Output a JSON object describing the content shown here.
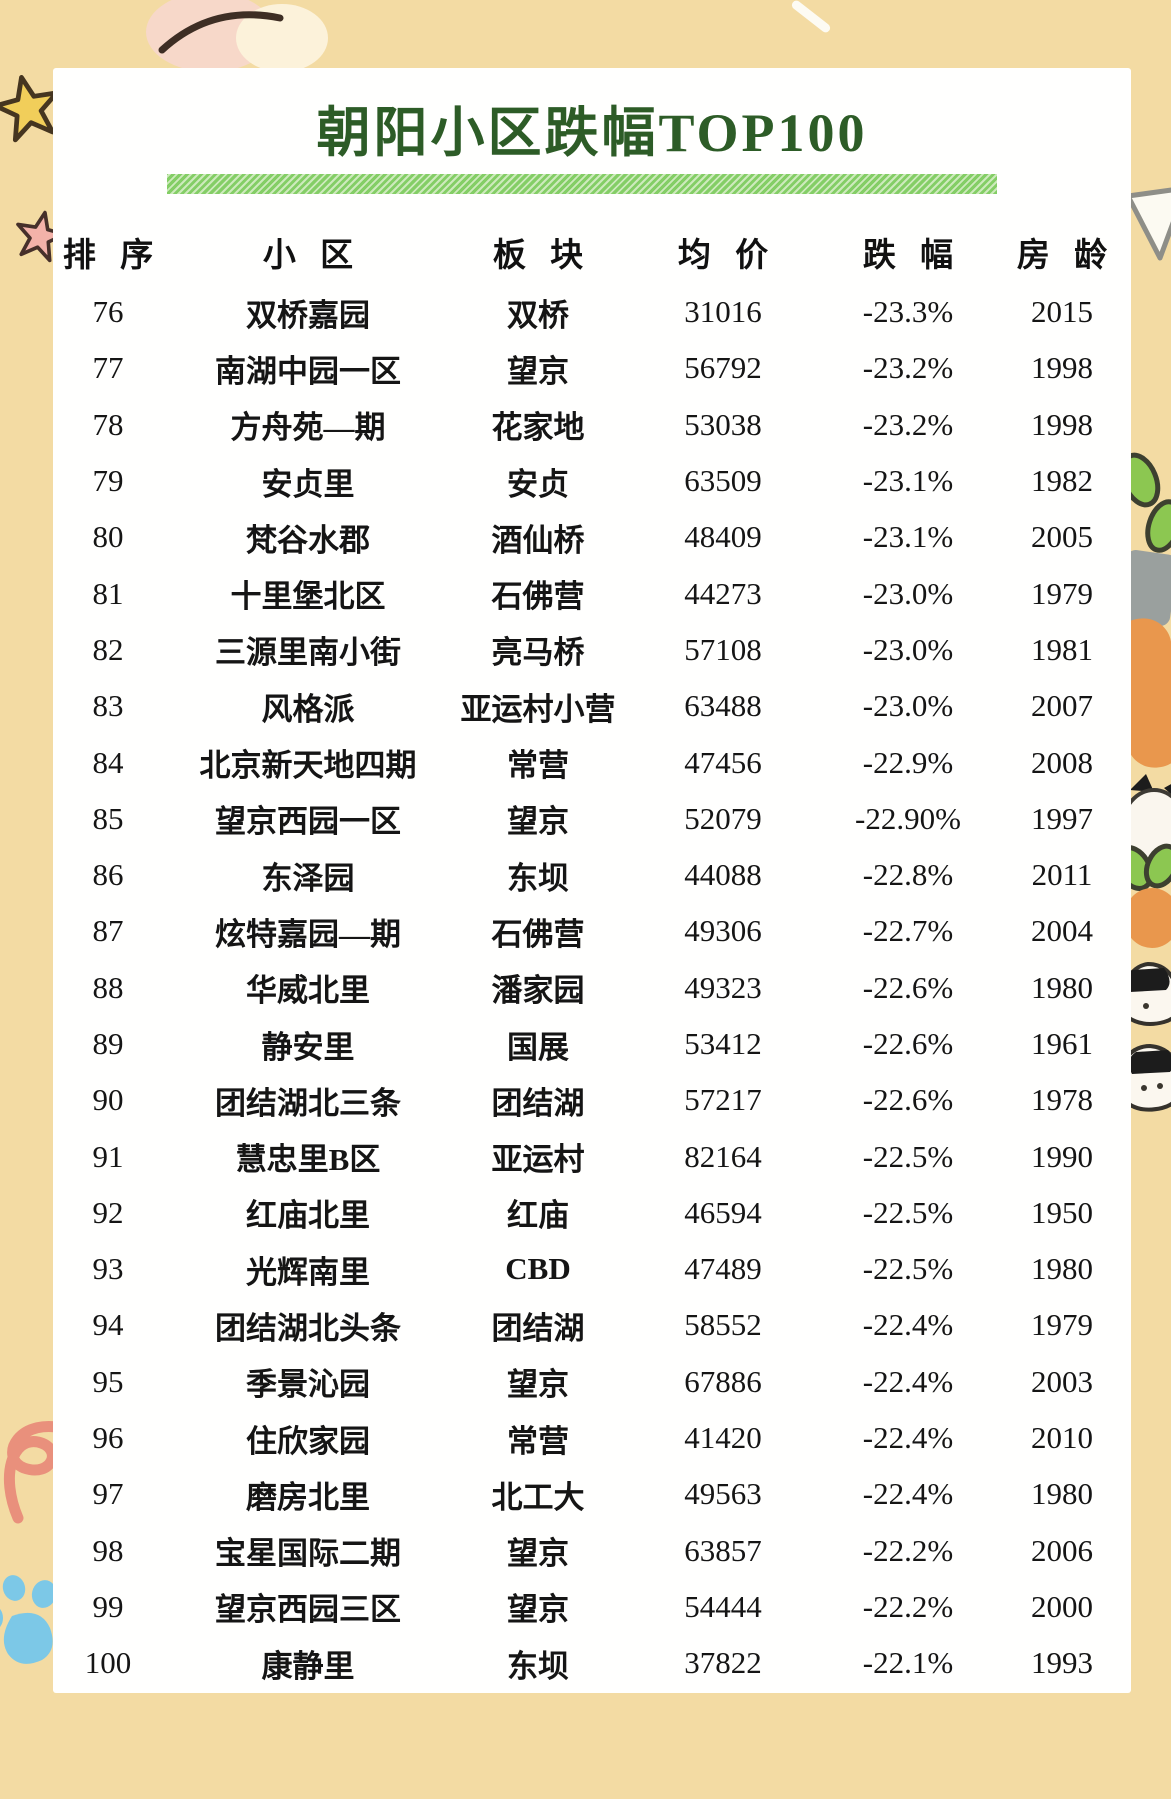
{
  "title": "朝阳小区跌幅TOP100",
  "table": {
    "headers": [
      "排 序",
      "小 区",
      "板 块",
      "均 价",
      "跌 幅",
      "房 龄"
    ],
    "column_names": [
      "排序",
      "小区",
      "板块",
      "均价",
      "跌幅",
      "房龄"
    ],
    "rows": [
      [
        "76",
        "双桥嘉园",
        "双桥",
        "31016",
        "-23.3%",
        "2015"
      ],
      [
        "77",
        "南湖中园一区",
        "望京",
        "56792",
        "-23.2%",
        "1998"
      ],
      [
        "78",
        "方舟苑—期",
        "花家地",
        "53038",
        "-23.2%",
        "1998"
      ],
      [
        "79",
        "安贞里",
        "安贞",
        "63509",
        "-23.1%",
        "1982"
      ],
      [
        "80",
        "梵谷水郡",
        "酒仙桥",
        "48409",
        "-23.1%",
        "2005"
      ],
      [
        "81",
        "十里堡北区",
        "石佛营",
        "44273",
        "-23.0%",
        "1979"
      ],
      [
        "82",
        "三源里南小街",
        "亮马桥",
        "57108",
        "-23.0%",
        "1981"
      ],
      [
        "83",
        "风格派",
        "亚运村小营",
        "63488",
        "-23.0%",
        "2007"
      ],
      [
        "84",
        "北京新天地四期",
        "常营",
        "47456",
        "-22.9%",
        "2008"
      ],
      [
        "85",
        "望京西园一区",
        "望京",
        "52079",
        "-22.90%",
        "1997"
      ],
      [
        "86",
        "东泽园",
        "东坝",
        "44088",
        "-22.8%",
        "2011"
      ],
      [
        "87",
        "炫特嘉园—期",
        "石佛营",
        "49306",
        "-22.7%",
        "2004"
      ],
      [
        "88",
        "华威北里",
        "潘家园",
        "49323",
        "-22.6%",
        "1980"
      ],
      [
        "89",
        "静安里",
        "国展",
        "53412",
        "-22.6%",
        "1961"
      ],
      [
        "90",
        "团结湖北三条",
        "团结湖",
        "57217",
        "-22.6%",
        "1978"
      ],
      [
        "91",
        "慧忠里B区",
        "亚运村",
        "82164",
        "-22.5%",
        "1990"
      ],
      [
        "92",
        "红庙北里",
        "红庙",
        "46594",
        "-22.5%",
        "1950"
      ],
      [
        "93",
        "光辉南里",
        "CBD",
        "47489",
        "-22.5%",
        "1980"
      ],
      [
        "94",
        "团结湖北头条",
        "团结湖",
        "58552",
        "-22.4%",
        "1979"
      ],
      [
        "95",
        "季景沁园",
        "望京",
        "67886",
        "-22.4%",
        "2003"
      ],
      [
        "96",
        "住欣家园",
        "常营",
        "41420",
        "-22.4%",
        "2010"
      ],
      [
        "97",
        "磨房北里",
        "北工大",
        "49563",
        "-22.4%",
        "1980"
      ],
      [
        "98",
        "宝星国际二期",
        "望京",
        "63857",
        "-22.2%",
        "2006"
      ],
      [
        "99",
        "望京西园三区",
        "望京",
        "54444",
        "-22.2%",
        "2000"
      ],
      [
        "100",
        "康静里",
        "东坝",
        "37822",
        "-22.1%",
        "1993"
      ]
    ]
  },
  "colors": {
    "background": "#f3dba3",
    "card": "#ffffff",
    "title_green": "#2d5c27",
    "bar_green": "#84ce66",
    "text": "#151515",
    "star_yellow": "#f1ce5a",
    "star_pink": "#f3b2a9",
    "ribbon_coral": "#e9907c",
    "paw_blue": "#7cc8e7",
    "carrot_orange": "#e9974d",
    "leaf_green": "#8cc751"
  },
  "decorations": [
    "pink-paw-icon",
    "yellow-star-icon",
    "pink-star-icon",
    "white-dash-icon",
    "white-triangle-icon",
    "carrot-icon",
    "cat-face-icon",
    "onigiri-cat-icon",
    "coral-ribbon-icon",
    "blue-paw-icon"
  ]
}
